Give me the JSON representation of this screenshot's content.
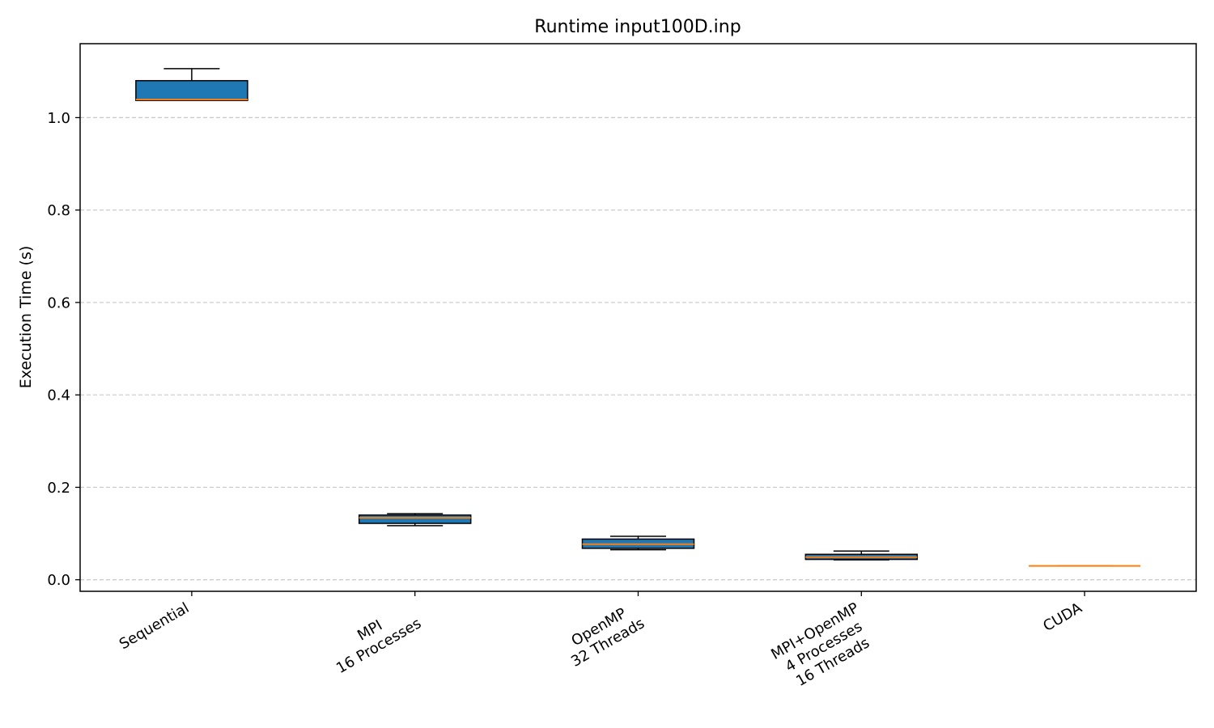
{
  "chart_data": {
    "type": "box",
    "title": "Runtime input100D.inp",
    "xlabel": "",
    "ylabel": "Execution Time (s)",
    "ylim": [
      -0.025,
      1.16
    ],
    "yticks": [
      0.0,
      0.2,
      0.4,
      0.6,
      0.8,
      1.0
    ],
    "ytick_labels": [
      "0.0",
      "0.2",
      "0.4",
      "0.6",
      "0.8",
      "1.0"
    ],
    "grid": "y-dashed",
    "box_color": "#1f77b4",
    "median_color": "#ff7f0e",
    "categories": [
      {
        "lines": [
          "Sequential"
        ]
      },
      {
        "lines": [
          "MPI",
          "16 Processes"
        ]
      },
      {
        "lines": [
          "OpenMP",
          "32 Threads"
        ]
      },
      {
        "lines": [
          "MPI+OpenMP",
          "4 Processes",
          "16 Threads"
        ]
      },
      {
        "lines": [
          "CUDA"
        ]
      }
    ],
    "boxes": [
      {
        "whislo": 1.037,
        "q1": 1.037,
        "med": 1.039,
        "q3": 1.08,
        "whishi": 1.106
      },
      {
        "whislo": 0.117,
        "q1": 0.122,
        "med": 0.134,
        "q3": 0.14,
        "whishi": 0.143
      },
      {
        "whislo": 0.065,
        "q1": 0.068,
        "med": 0.077,
        "q3": 0.088,
        "whishi": 0.094
      },
      {
        "whislo": 0.043,
        "q1": 0.044,
        "med": 0.049,
        "q3": 0.055,
        "whishi": 0.062
      },
      {
        "whislo": 0.03,
        "q1": 0.03,
        "med": 0.03,
        "q3": 0.03,
        "whishi": 0.03
      }
    ]
  }
}
